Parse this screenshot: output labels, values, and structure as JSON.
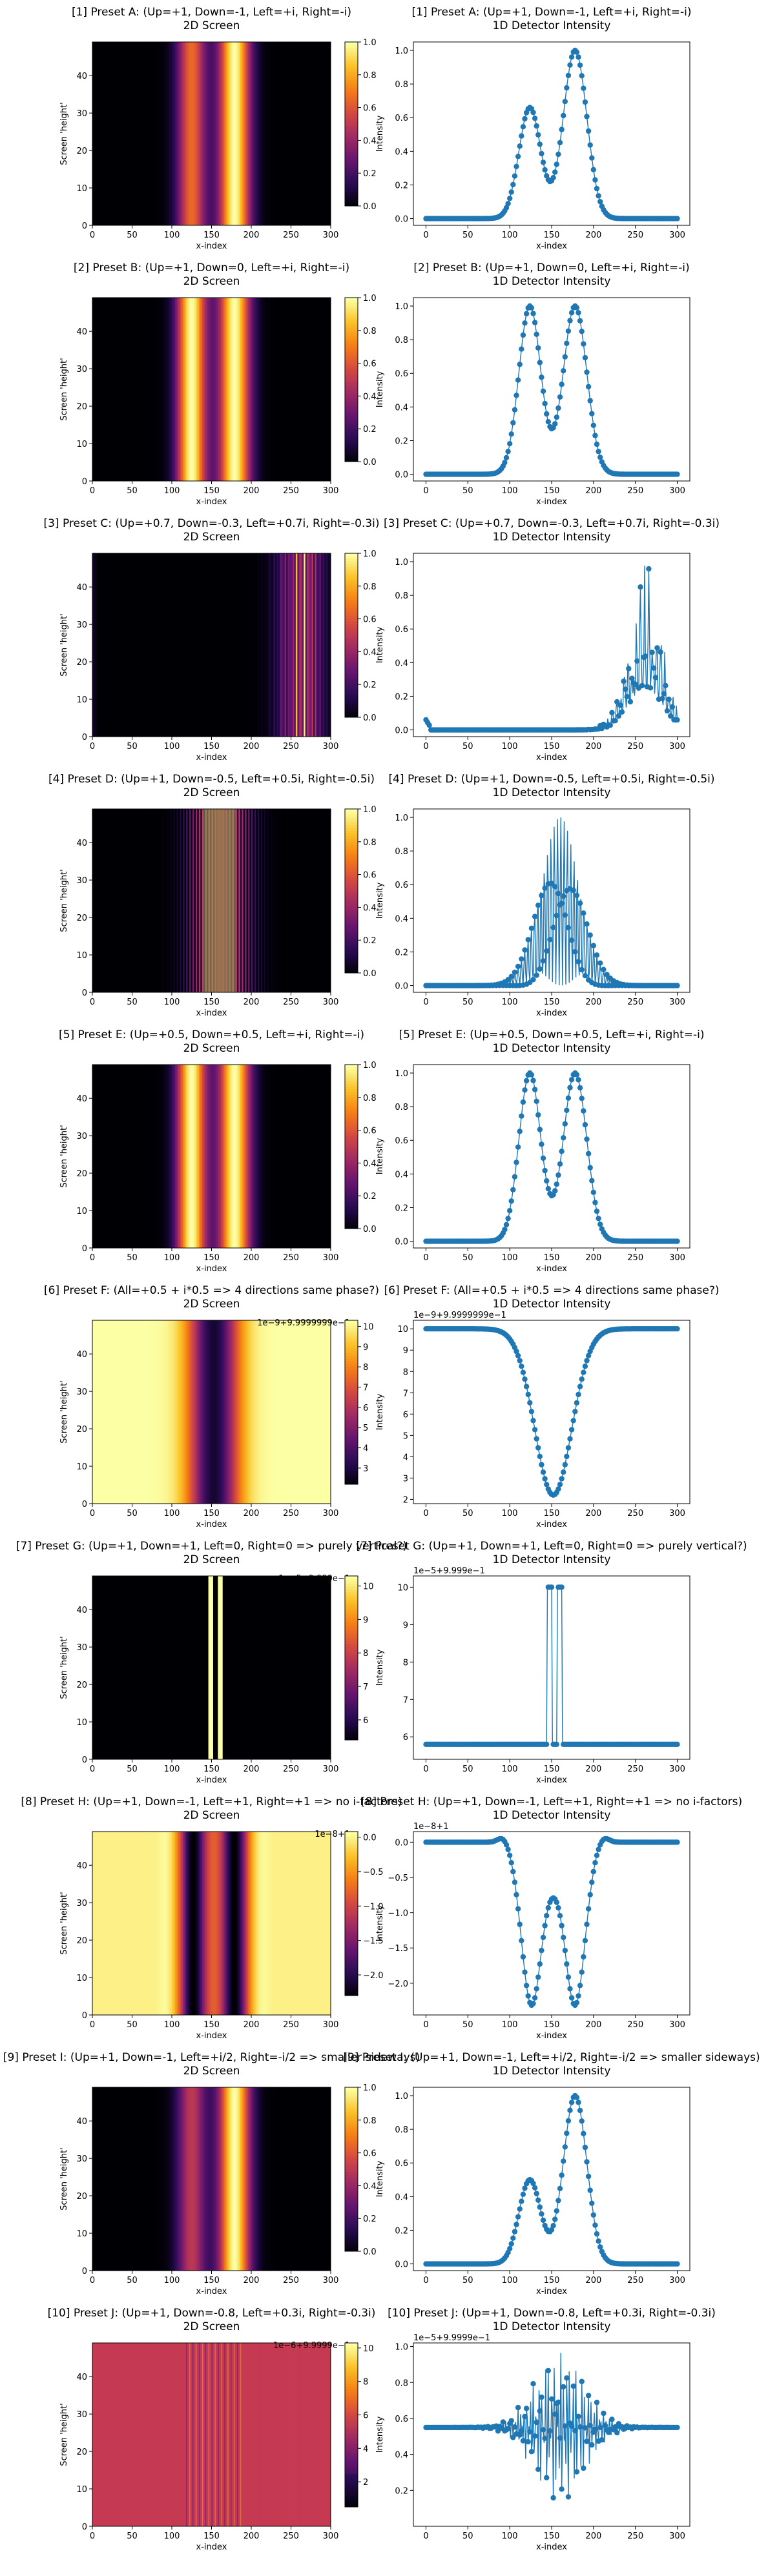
{
  "figure": {
    "colormap": "inferno",
    "line_color": "#1f77b4",
    "axis_xlabel": "x-index",
    "heat_ylabel": "Screen 'height'",
    "line_ylabel": "Intensity",
    "line_subtitle": "1D Detector Intensity",
    "heat_subtitle": "2D Screen",
    "x_ticks": [
      "0",
      "50",
      "100",
      "150",
      "200",
      "250",
      "300"
    ],
    "heat_y_ticks": [
      "0",
      "10",
      "20",
      "30",
      "40"
    ]
  },
  "chart_data": [
    {
      "type": "heatmap+line",
      "title": "[1] Preset A: (Up=+1, Down=-1, Left=+i, Right=-i)",
      "profile": "asym",
      "params": {
        "a": 0.66,
        "b": 1.0
      },
      "colorbar_ticks": [
        "0.0",
        "0.2",
        "0.4",
        "0.6",
        "0.8",
        "1.0"
      ],
      "cbar_range": [
        0,
        1.0
      ],
      "line_ylim": [
        -0.04,
        1.05
      ],
      "line_yticks": [
        "0.0",
        "0.2",
        "0.4",
        "0.6",
        "0.8",
        "1.0"
      ],
      "line_ytick_values": [
        0,
        0.2,
        0.4,
        0.6,
        0.8,
        1.0
      ],
      "offset_text_heat": "",
      "offset_text_line": ""
    },
    {
      "type": "heatmap+line",
      "title": "[2] Preset B: (Up=+1, Down=0, Left=+i, Right=-i)",
      "profile": "asym",
      "params": {
        "a": 1.0,
        "b": 1.0
      },
      "colorbar_ticks": [
        "0.0",
        "0.2",
        "0.4",
        "0.6",
        "0.8",
        "1.0"
      ],
      "cbar_range": [
        0,
        1.0
      ],
      "line_ylim": [
        -0.04,
        1.05
      ],
      "line_yticks": [
        "0.0",
        "0.2",
        "0.4",
        "0.6",
        "0.8",
        "1.0"
      ],
      "line_ytick_values": [
        0,
        0.2,
        0.4,
        0.6,
        0.8,
        1.0
      ],
      "offset_text_heat": "",
      "offset_text_line": ""
    },
    {
      "type": "heatmap+line",
      "title": "[3] Preset C: (Up=+0.7, Down=-0.3, Left=+0.7i, Right=-0.3i)",
      "profile": "noisy",
      "params": {},
      "colorbar_ticks": [
        "0.0",
        "0.2",
        "0.4",
        "0.6",
        "0.8",
        "1.0"
      ],
      "cbar_range": [
        0,
        1.0
      ],
      "line_ylim": [
        -0.04,
        1.05
      ],
      "line_yticks": [
        "0.0",
        "0.2",
        "0.4",
        "0.6",
        "0.8",
        "1.0"
      ],
      "line_ytick_values": [
        0,
        0.2,
        0.4,
        0.6,
        0.8,
        1.0
      ],
      "offset_text_heat": "",
      "offset_text_line": ""
    },
    {
      "type": "heatmap+line",
      "title": "[4] Preset D: (Up=+1, Down=-0.5, Left=+0.5i, Right=-0.5i)",
      "profile": "fringe",
      "params": {},
      "colorbar_ticks": [
        "0.0",
        "0.2",
        "0.4",
        "0.6",
        "0.8",
        "1.0"
      ],
      "cbar_range": [
        0,
        1.0
      ],
      "line_ylim": [
        -0.04,
        1.05
      ],
      "line_yticks": [
        "0.0",
        "0.2",
        "0.4",
        "0.6",
        "0.8",
        "1.0"
      ],
      "line_ytick_values": [
        0,
        0.2,
        0.4,
        0.6,
        0.8,
        1.0
      ],
      "offset_text_heat": "",
      "offset_text_line": ""
    },
    {
      "type": "heatmap+line",
      "title": "[5] Preset E: (Up=+0.5, Down=+0.5, Left=+i, Right=-i)",
      "profile": "asym",
      "params": {
        "a": 1.0,
        "b": 1.0
      },
      "colorbar_ticks": [
        "0.0",
        "0.2",
        "0.4",
        "0.6",
        "0.8",
        "1.0"
      ],
      "cbar_range": [
        0,
        1.0
      ],
      "line_ylim": [
        -0.04,
        1.05
      ],
      "line_yticks": [
        "0.0",
        "0.2",
        "0.4",
        "0.6",
        "0.8",
        "1.0"
      ],
      "line_ytick_values": [
        0,
        0.2,
        0.4,
        0.6,
        0.8,
        1.0
      ],
      "offset_text_heat": "",
      "offset_text_line": ""
    },
    {
      "type": "heatmap+line",
      "title": "[6] Preset F: (All=+0.5 + i*0.5 => 4 directions same phase?)",
      "profile": "dip",
      "params": {},
      "colorbar_ticks": [
        "3",
        "4",
        "5",
        "6",
        "7",
        "8",
        "9",
        "10"
      ],
      "cbar_range": [
        2.2,
        10.3
      ],
      "line_ylim": [
        1.8,
        10.4
      ],
      "line_yticks": [
        "2",
        "3",
        "4",
        "5",
        "6",
        "7",
        "8",
        "9",
        "10"
      ],
      "line_ytick_values": [
        2,
        3,
        4,
        5,
        6,
        7,
        8,
        9,
        10
      ],
      "offset_text_heat": "1e−9+9.9999999e−1",
      "offset_text_line": "1e−9+9.9999999e−1"
    },
    {
      "type": "heatmap+line",
      "title": "[7] Preset G: (Up=+1, Down=+1, Left=0, Right=0 => purely vertical?)",
      "profile": "spikes",
      "params": {},
      "colorbar_ticks": [
        "6",
        "7",
        "8",
        "9",
        "10"
      ],
      "cbar_range": [
        5.4,
        10.3
      ],
      "line_ylim": [
        5.4,
        10.3
      ],
      "line_yticks": [
        "6",
        "7",
        "8",
        "9",
        "10"
      ],
      "line_ytick_values": [
        6,
        7,
        8,
        9,
        10
      ],
      "offset_text_heat": "1e−5+9.999e−1",
      "offset_text_line": "1e−5+9.999e−1"
    },
    {
      "type": "heatmap+line",
      "title": "[8] Preset H: (Up=+1, Down=-1, Left=+1, Right=+1 => no i-factors)",
      "profile": "neg",
      "params": {},
      "colorbar_ticks": [
        "−2.0",
        "−1.5",
        "−1.0",
        "−0.5",
        "0.0"
      ],
      "colorbar_tick_values": [
        -2.0,
        -1.5,
        -1.0,
        -0.5,
        0.0
      ],
      "cbar_range": [
        -2.3,
        0.08
      ],
      "line_ylim": [
        -2.45,
        0.15
      ],
      "line_yticks": [
        "−2.0",
        "−1.5",
        "−1.0",
        "−0.5",
        "0.0"
      ],
      "line_ytick_values": [
        -2.0,
        -1.5,
        -1.0,
        -0.5,
        0.0
      ],
      "offset_text_heat": "1e−8+1",
      "offset_text_line": "1e−8+1"
    },
    {
      "type": "heatmap+line",
      "title": "[9] Preset I: (Up=+1, Down=-1, Left=+i/2, Right=-i/2 => smaller sideways)",
      "profile": "asym",
      "params": {
        "a": 0.5,
        "b": 1.0
      },
      "colorbar_ticks": [
        "0.0",
        "0.2",
        "0.4",
        "0.6",
        "0.8",
        "1.0"
      ],
      "cbar_range": [
        0,
        1.0
      ],
      "line_ylim": [
        -0.04,
        1.05
      ],
      "line_yticks": [
        "0.0",
        "0.2",
        "0.4",
        "0.6",
        "0.8",
        "1.0"
      ],
      "line_ytick_values": [
        0,
        0.2,
        0.4,
        0.6,
        0.8,
        1.0
      ],
      "offset_text_heat": "",
      "offset_text_line": ""
    },
    {
      "type": "heatmap+line",
      "title": "[10] Preset J: (Up=+1, Down=-0.8, Left=+0.3i, Right=-0.3i)",
      "profile": "noise",
      "params": {},
      "colorbar_ticks": [
        "2",
        "4",
        "6",
        "8",
        "10"
      ],
      "cbar_range": [
        0.5,
        10.3
      ],
      "line_ylim": [
        0.0,
        1.02
      ],
      "line_yticks": [
        "0.2",
        "0.4",
        "0.6",
        "0.8",
        "1.0"
      ],
      "line_ytick_values": [
        0.2,
        0.4,
        0.6,
        0.8,
        1.0
      ],
      "offset_text_heat": "1e−6+9.9999e−1",
      "offset_text_line": "1e−5+9.9999e−1"
    }
  ]
}
